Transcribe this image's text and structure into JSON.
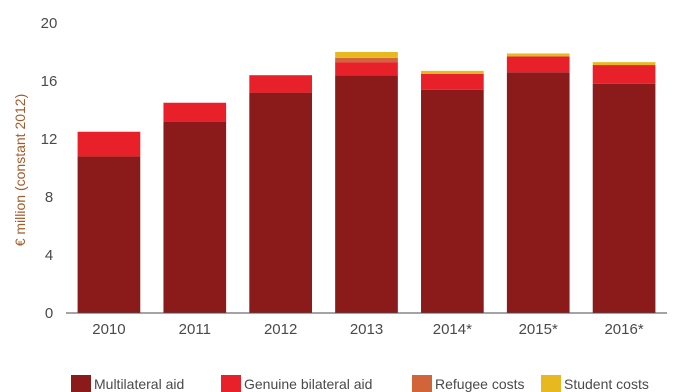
{
  "chart_data": {
    "type": "bar",
    "stacked": true,
    "title": "",
    "xlabel": "",
    "ylabel": "€ million (constant 2012)",
    "ylim": [
      0,
      20
    ],
    "yticks": [
      0,
      4,
      8,
      12,
      16,
      20
    ],
    "grid": false,
    "legend_position": "bottom",
    "categories": [
      "2010",
      "2011",
      "2012",
      "2013",
      "2014*",
      "2015*",
      "2016*"
    ],
    "series": [
      {
        "name": "Multilateral aid",
        "color": "#8b1a1a",
        "values": [
          10.8,
          13.2,
          15.2,
          16.4,
          15.4,
          16.6,
          15.8
        ]
      },
      {
        "name": "Genuine bilateral aid",
        "color": "#e8202a",
        "values": [
          1.7,
          1.3,
          1.2,
          0.9,
          1.1,
          1.1,
          1.3
        ]
      },
      {
        "name": "Refugee costs",
        "color": "#d2643a",
        "values": [
          0,
          0,
          0,
          0.3,
          0,
          0,
          0
        ]
      },
      {
        "name": "Student costs",
        "color": "#e8b820",
        "values": [
          0,
          0,
          0,
          0.4,
          0.2,
          0.2,
          0.2
        ]
      }
    ]
  }
}
